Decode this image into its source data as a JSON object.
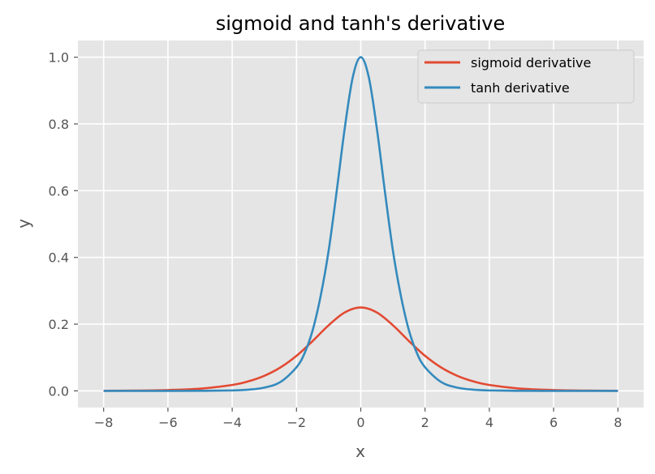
{
  "chart_data": {
    "type": "line",
    "title": "sigmoid and tanh's derivative",
    "xlabel": "x",
    "ylabel": "y",
    "xlim": [
      -8.8,
      8.8
    ],
    "ylim": [
      -0.05,
      1.05
    ],
    "xticks": [
      -8,
      -6,
      -4,
      -2,
      0,
      2,
      4,
      6,
      8
    ],
    "xtick_labels": [
      "−8",
      "−6",
      "−4",
      "−2",
      "0",
      "2",
      "4",
      "6",
      "8"
    ],
    "yticks": [
      0.0,
      0.2,
      0.4,
      0.6,
      0.8,
      1.0
    ],
    "ytick_labels": [
      "0.0",
      "0.2",
      "0.4",
      "0.6",
      "0.8",
      "1.0"
    ],
    "grid": true,
    "legend_position": "top-right",
    "series": [
      {
        "name": "sigmoid derivative",
        "color": "#E24A33",
        "x": [
          -8,
          -7,
          -6,
          -5,
          -4,
          -3.5,
          -3,
          -2.5,
          -2,
          -1.5,
          -1,
          -0.5,
          0,
          0.5,
          1,
          1.5,
          2,
          2.5,
          3,
          3.5,
          4,
          5,
          6,
          7,
          8
        ],
        "y": [
          0.0003,
          0.0009,
          0.0025,
          0.0066,
          0.0177,
          0.0285,
          0.0452,
          0.0701,
          0.105,
          0.1491,
          0.1966,
          0.235,
          0.25,
          0.235,
          0.1966,
          0.1491,
          0.105,
          0.0701,
          0.0452,
          0.0285,
          0.0177,
          0.0066,
          0.0025,
          0.0009,
          0.0003
        ]
      },
      {
        "name": "tanh derivative",
        "color": "#348ABD",
        "x": [
          -8,
          -7,
          -6,
          -5,
          -4,
          -3.5,
          -3,
          -2.5,
          -2,
          -1.75,
          -1.5,
          -1.25,
          -1,
          -0.75,
          -0.5,
          -0.25,
          0,
          0.25,
          0.5,
          0.75,
          1,
          1.25,
          1.5,
          1.75,
          2,
          2.5,
          3,
          3.5,
          4,
          5,
          6,
          7,
          8
        ],
        "y": [
          0.0,
          0.0,
          0.0,
          0.0002,
          0.0013,
          0.0036,
          0.0099,
          0.0266,
          0.0707,
          0.1125,
          0.1807,
          0.2837,
          0.42,
          0.5979,
          0.7864,
          0.9397,
          1.0,
          0.9397,
          0.7864,
          0.5979,
          0.42,
          0.2837,
          0.1807,
          0.1125,
          0.0707,
          0.0266,
          0.0099,
          0.0036,
          0.0013,
          0.0002,
          0.0,
          0.0,
          0.0
        ]
      }
    ]
  }
}
